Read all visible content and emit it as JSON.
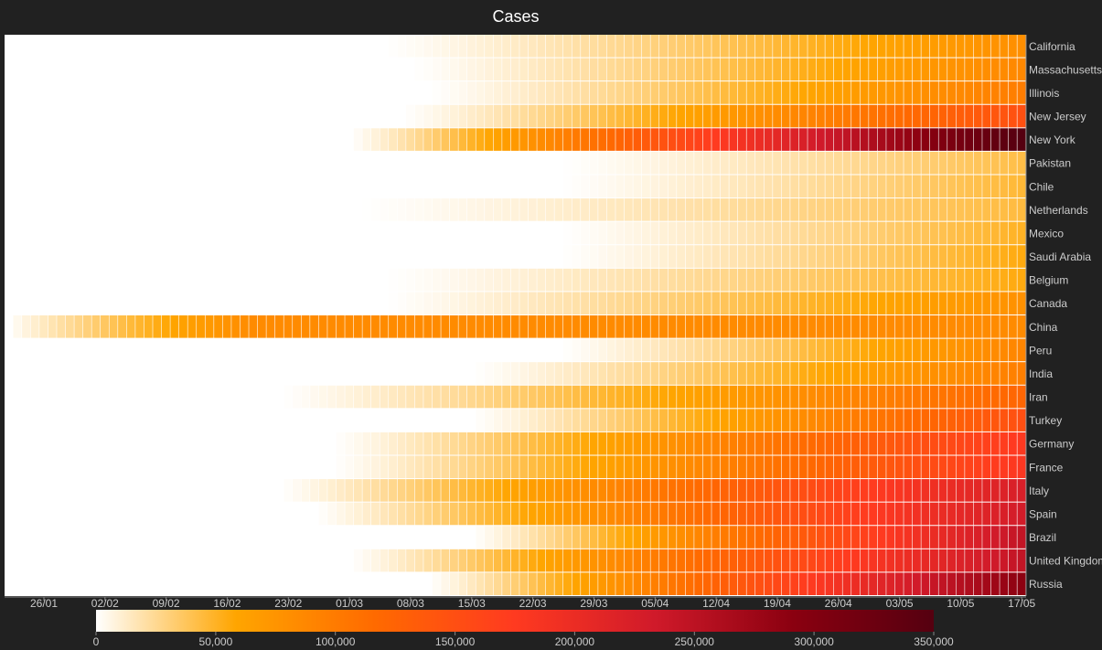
{
  "chart_data": {
    "type": "heatmap",
    "title": "Cases",
    "x_tick_labels": [
      "26/01",
      "02/02",
      "09/02",
      "16/02",
      "23/02",
      "01/03",
      "08/03",
      "15/03",
      "22/03",
      "29/03",
      "05/04",
      "12/04",
      "19/04",
      "26/04",
      "03/05",
      "10/05",
      "17/05"
    ],
    "x_range": [
      "22/01",
      "18/05"
    ],
    "rows": [
      "California",
      "Massachusetts",
      "Illinois",
      "New Jersey",
      "New York",
      "Pakistan",
      "Chile",
      "Netherlands",
      "Mexico",
      "Saudi Arabia",
      "Belgium",
      "Canada",
      "China",
      "Peru",
      "India",
      "Iran",
      "Turkey",
      "Germany",
      "France",
      "Italy",
      "Spain",
      "Brazil",
      "United Kingdom",
      "Russia"
    ],
    "series": [
      {
        "name": "California",
        "onset": "05/03",
        "final": 80000
      },
      {
        "name": "Massachusetts",
        "onset": "08/03",
        "final": 87000
      },
      {
        "name": "Illinois",
        "onset": "10/03",
        "final": 98000
      },
      {
        "name": "New Jersey",
        "onset": "07/03",
        "final": 148000
      },
      {
        "name": "New York",
        "onset": "01/03",
        "final": 350000
      },
      {
        "name": "Pakistan",
        "onset": "25/03",
        "final": 42000
      },
      {
        "name": "Chile",
        "onset": "25/03",
        "final": 46000
      },
      {
        "name": "Netherlands",
        "onset": "02/03",
        "final": 44000
      },
      {
        "name": "Mexico",
        "onset": "25/03",
        "final": 50000
      },
      {
        "name": "Saudi Arabia",
        "onset": "25/03",
        "final": 55000
      },
      {
        "name": "Belgium",
        "onset": "05/03",
        "final": 55000
      },
      {
        "name": "Canada",
        "onset": "05/03",
        "final": 78000
      },
      {
        "name": "China",
        "onset": "22/01",
        "final": 84000
      },
      {
        "name": "Peru",
        "onset": "25/03",
        "final": 90000
      },
      {
        "name": "India",
        "onset": "15/03",
        "final": 96000
      },
      {
        "name": "Iran",
        "onset": "22/02",
        "final": 122000
      },
      {
        "name": "Turkey",
        "onset": "15/03",
        "final": 149000
      },
      {
        "name": "Germany",
        "onset": "28/02",
        "final": 177000
      },
      {
        "name": "France",
        "onset": "28/02",
        "final": 180000
      },
      {
        "name": "Italy",
        "onset": "22/02",
        "final": 225000
      },
      {
        "name": "Spain",
        "onset": "26/02",
        "final": 230000
      },
      {
        "name": "Brazil",
        "onset": "15/03",
        "final": 245000
      },
      {
        "name": "United Kingdom",
        "onset": "01/03",
        "final": 245000
      },
      {
        "name": "Russia",
        "onset": "10/03",
        "final": 290000
      }
    ],
    "color_scale": {
      "domain": [
        0,
        350000
      ],
      "ticks": [
        "0",
        "50,000",
        "100,000",
        "150,000",
        "200,000",
        "250,000",
        "300,000",
        "350,000"
      ],
      "colors": [
        "#ffffff",
        "#ffa500",
        "#ff6a00",
        "#ff3a20",
        "#d01a2a",
        "#8a0010",
        "#550010"
      ]
    },
    "legend": "bottom",
    "grid": false
  },
  "colors": {
    "background": "#212121",
    "label": "#cccccc",
    "title": "#ffffff"
  }
}
